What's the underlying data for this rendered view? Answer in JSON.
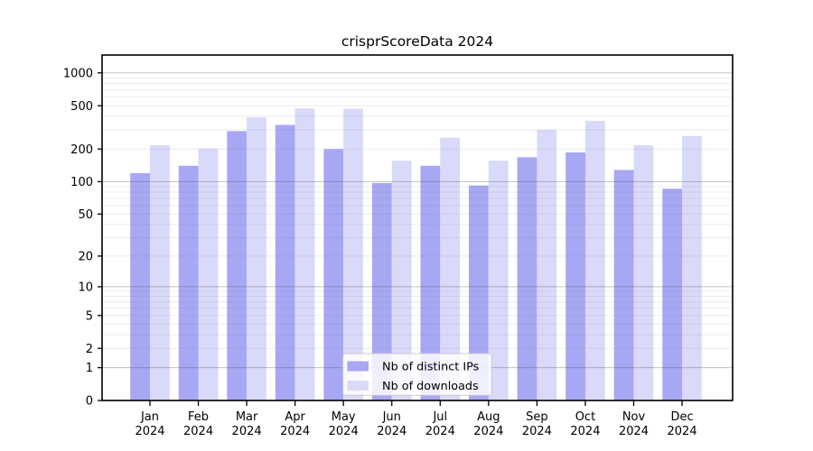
{
  "title": "crisprScoreData 2024",
  "legend": {
    "position": "lower center",
    "items": [
      {
        "label": "Nb of distinct IPs",
        "color": "#a7a7f4"
      },
      {
        "label": "Nb of downloads",
        "color": "#d9d9fa"
      }
    ]
  },
  "chart_data": {
    "type": "bar",
    "scale": "log1p",
    "grid": true,
    "title": "crisprScoreData 2024",
    "xlabel": "",
    "ylabel": "",
    "year_label": "2024",
    "categories": [
      "Jan",
      "Feb",
      "Mar",
      "Apr",
      "May",
      "Jun",
      "Jul",
      "Aug",
      "Sep",
      "Oct",
      "Nov",
      "Dec"
    ],
    "series": [
      {
        "name": "Nb of distinct IPs",
        "color": "#a7a7f4",
        "values": [
          120,
          140,
          292,
          333,
          200,
          97,
          140,
          92,
          168,
          186,
          128,
          86
        ]
      },
      {
        "name": "Nb of downloads",
        "color": "#d9d9fa",
        "values": [
          217,
          202,
          390,
          472,
          468,
          156,
          255,
          156,
          300,
          362,
          217,
          263
        ]
      }
    ],
    "y_ticks": [
      0,
      1,
      2,
      5,
      10,
      20,
      50,
      100,
      200,
      500,
      1000
    ],
    "y_tick_labels": [
      "0",
      "1",
      "2",
      "5",
      "10",
      "20",
      "50",
      "100",
      "200",
      "500",
      "1000"
    ],
    "ylim": [
      0,
      1465
    ]
  }
}
